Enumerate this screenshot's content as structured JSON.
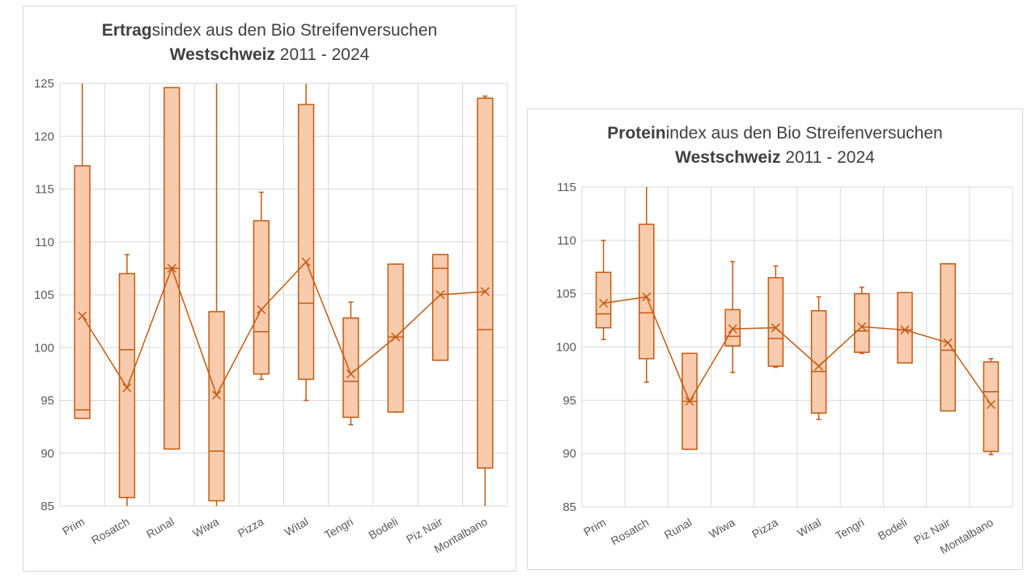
{
  "chart_data": [
    {
      "type": "boxplot",
      "title": {
        "bold": "Ertrag",
        "rest": "sindex aus den Bio Streifenversuchen",
        "line2_bold": "Westschweiz",
        "line2_rest": " 2011 - 2024"
      },
      "ylim": [
        85,
        125
      ],
      "yticks": [
        85,
        90,
        95,
        100,
        105,
        110,
        115,
        120,
        125
      ],
      "grid": true,
      "color": "#c55a11",
      "fill": "#f8cbad",
      "categories": [
        "Prim",
        "Rosatch",
        "Runal",
        "Wiwa",
        "Pizza",
        "Wital",
        "Tengri",
        "Bodeli",
        "Piz Nair",
        "Montalbano"
      ],
      "boxes": [
        {
          "min": 93.3,
          "q1": 93.3,
          "median": 94.1,
          "q3": 117.2,
          "max": 125,
          "mean": 103.0
        },
        {
          "min": 85,
          "q1": 85.8,
          "median": 99.8,
          "q3": 107.0,
          "max": 108.8,
          "mean": 96.2
        },
        {
          "min": 90.4,
          "q1": 90.4,
          "median": 107.5,
          "q3": 124.6,
          "max": 124.6,
          "mean": 107.5
        },
        {
          "min": 85,
          "q1": 85.5,
          "median": 90.2,
          "q3": 103.4,
          "max": 125,
          "mean": 95.5
        },
        {
          "min": 97.0,
          "q1": 97.5,
          "median": 101.5,
          "q3": 112.0,
          "max": 114.7,
          "mean": 103.6
        },
        {
          "min": 95.0,
          "q1": 97.0,
          "median": 104.2,
          "q3": 123.0,
          "max": 125,
          "mean": 108.1
        },
        {
          "min": 92.7,
          "q1": 93.4,
          "median": 96.8,
          "q3": 102.8,
          "max": 104.3,
          "mean": 97.5
        },
        {
          "min": 93.9,
          "q1": 93.9,
          "median": 101.0,
          "q3": 107.9,
          "max": 107.9,
          "mean": 101.0
        },
        {
          "min": 98.8,
          "q1": 98.8,
          "median": 107.5,
          "q3": 108.8,
          "max": 108.8,
          "mean": 105.0
        },
        {
          "min": 85,
          "q1": 88.6,
          "median": 101.7,
          "q3": 123.6,
          "max": 123.8,
          "mean": 105.3
        }
      ]
    },
    {
      "type": "boxplot",
      "title": {
        "bold": "Protein",
        "rest": "index aus den Bio Streifenversuchen",
        "line2_bold": "Westschweiz",
        "line2_rest": " 2011 - 2024"
      },
      "ylim": [
        85,
        115
      ],
      "yticks": [
        85,
        90,
        95,
        100,
        105,
        110,
        115
      ],
      "grid": true,
      "color": "#c55a11",
      "fill": "#f8cbad",
      "categories": [
        "Prim",
        "Rosatch",
        "Runal",
        "Wiwa",
        "Pizza",
        "Wital",
        "Tengri",
        "Bodeli",
        "Piz Nair",
        "Montalbano"
      ],
      "boxes": [
        {
          "min": 100.7,
          "q1": 101.8,
          "median": 103.1,
          "q3": 107.0,
          "max": 110.0,
          "mean": 104.1
        },
        {
          "min": 96.7,
          "q1": 98.9,
          "median": 103.2,
          "q3": 111.5,
          "max": 115,
          "mean": 104.7
        },
        {
          "min": 90.4,
          "q1": 90.4,
          "median": 94.9,
          "q3": 99.4,
          "max": 99.4,
          "mean": 94.9
        },
        {
          "min": 97.6,
          "q1": 100.1,
          "median": 101.0,
          "q3": 103.5,
          "max": 108.0,
          "mean": 101.7
        },
        {
          "min": 98.1,
          "q1": 98.2,
          "median": 100.8,
          "q3": 106.5,
          "max": 107.6,
          "mean": 101.8
        },
        {
          "min": 93.2,
          "q1": 93.8,
          "median": 97.7,
          "q3": 103.4,
          "max": 104.7,
          "mean": 98.2
        },
        {
          "min": 99.4,
          "q1": 99.5,
          "median": 101.5,
          "q3": 105.0,
          "max": 105.6,
          "mean": 101.9
        },
        {
          "min": 98.5,
          "q1": 98.5,
          "median": 101.6,
          "q3": 105.1,
          "max": 105.1,
          "mean": 101.6
        },
        {
          "min": 94.0,
          "q1": 94.0,
          "median": 99.7,
          "q3": 107.8,
          "max": 107.8,
          "mean": 100.4
        },
        {
          "min": 89.9,
          "q1": 90.2,
          "median": 95.8,
          "q3": 98.6,
          "max": 98.9,
          "mean": 94.6
        }
      ]
    }
  ]
}
